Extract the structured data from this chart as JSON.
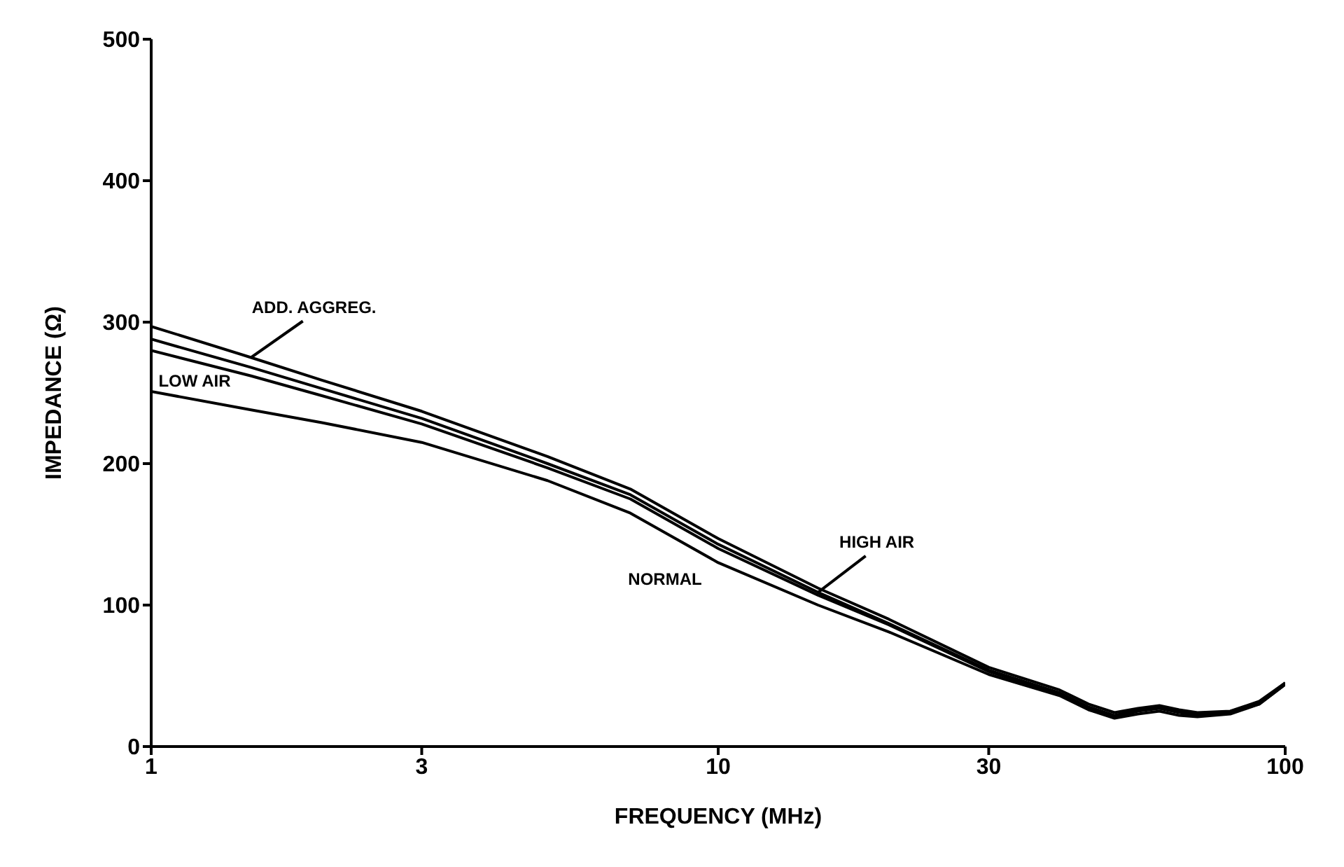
{
  "chart_data": {
    "type": "line",
    "xlabel": "FREQUENCY (MHz)",
    "ylabel": "IMPEDANCE (Ω)",
    "x": [
      1,
      1.5,
      2,
      3,
      5,
      7,
      10,
      15,
      20,
      30,
      40,
      45,
      50,
      55,
      60,
      65,
      70,
      80,
      90,
      100
    ],
    "series": [
      {
        "name": "ADD. AGGREG.",
        "color": "#000000",
        "values": [
          297,
          275,
          259,
          237,
          205,
          182,
          147,
          112,
          90,
          56,
          40,
          30,
          24,
          27,
          29,
          26,
          24,
          25,
          32,
          45
        ]
      },
      {
        "name": "HIGH AIR",
        "color": "#000000",
        "values": [
          288,
          268,
          253,
          232,
          200,
          178,
          143,
          109,
          87,
          54,
          38,
          28,
          22,
          26,
          28,
          25,
          23,
          24,
          31,
          45
        ]
      },
      {
        "name": "LOW AIR",
        "color": "#000000",
        "values": [
          280,
          262,
          248,
          228,
          197,
          175,
          140,
          107,
          86,
          53,
          37,
          27,
          21,
          25,
          27,
          24,
          22,
          24,
          30,
          44
        ]
      },
      {
        "name": "NORMAL",
        "color": "#000000",
        "values": [
          251,
          238,
          229,
          215,
          188,
          165,
          130,
          100,
          81,
          51,
          36,
          26,
          20,
          23,
          25,
          22,
          21,
          23,
          30,
          44
        ]
      }
    ],
    "log": "x",
    "xlim": [
      1,
      100
    ],
    "xticks": [
      1,
      3,
      10,
      30,
      100
    ],
    "ylim": [
      0,
      500
    ],
    "yticks": [
      0,
      100,
      200,
      300,
      400,
      500
    ],
    "grid": false,
    "legend": false,
    "marker": "none",
    "line_style": "solid"
  }
}
